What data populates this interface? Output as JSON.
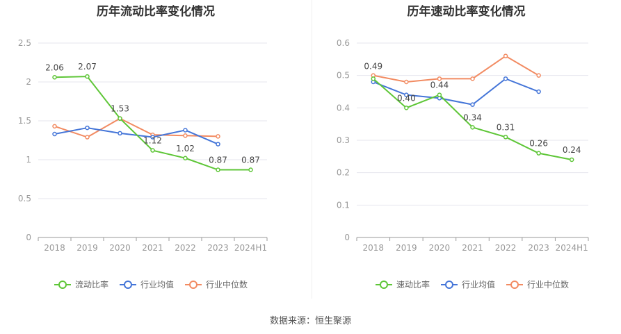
{
  "source_text": "数据来源：恒生聚源",
  "chart_data": [
    {
      "type": "line",
      "title": "历年流动比率变化情况",
      "categories": [
        "2018",
        "2019",
        "2020",
        "2021",
        "2022",
        "2023",
        "2024H1"
      ],
      "ylim": [
        0,
        2.5
      ],
      "yticks": [
        "0",
        "0.5",
        "1",
        "1.5",
        "2",
        "2.5"
      ],
      "grid": true,
      "legend_position": "bottom",
      "series": [
        {
          "name": "流动比率",
          "color": "#5ec637",
          "values": [
            2.06,
            2.07,
            1.53,
            1.12,
            1.02,
            0.87,
            0.87
          ],
          "labels": [
            "2.06",
            "2.07",
            "1.53",
            "1.12",
            "1.02",
            "0.87",
            "0.87"
          ]
        },
        {
          "name": "行业均值",
          "color": "#4475d8",
          "values": [
            1.33,
            1.41,
            1.34,
            1.29,
            1.38,
            1.2,
            null
          ]
        },
        {
          "name": "行业中位数",
          "color": "#f28b62",
          "values": [
            1.43,
            1.29,
            1.53,
            1.32,
            1.31,
            1.3,
            null
          ]
        }
      ]
    },
    {
      "type": "line",
      "title": "历年速动比率变化情况",
      "categories": [
        "2018",
        "2019",
        "2020",
        "2021",
        "2022",
        "2023",
        "2024H1"
      ],
      "ylim": [
        0,
        0.6
      ],
      "yticks": [
        "0",
        "0.1",
        "0.2",
        "0.3",
        "0.4",
        "0.5",
        "0.6"
      ],
      "grid": true,
      "legend_position": "bottom",
      "series": [
        {
          "name": "速动比率",
          "color": "#5ec637",
          "values": [
            0.49,
            0.4,
            0.44,
            0.34,
            0.31,
            0.26,
            0.24
          ],
          "labels": [
            "0.49",
            "0.40",
            "0.44",
            "0.34",
            "0.31",
            "0.26",
            "0.24"
          ]
        },
        {
          "name": "行业均值",
          "color": "#4475d8",
          "values": [
            0.48,
            0.44,
            0.43,
            0.41,
            0.49,
            0.45,
            null
          ]
        },
        {
          "name": "行业中位数",
          "color": "#f28b62",
          "values": [
            0.5,
            0.48,
            0.49,
            0.49,
            0.56,
            0.5,
            null
          ]
        }
      ]
    }
  ]
}
